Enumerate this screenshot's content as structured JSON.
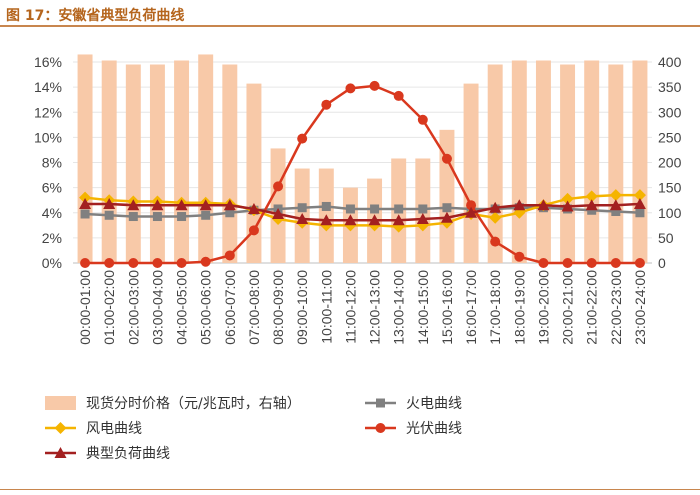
{
  "title": "图 17：安徽省典型负荷曲线",
  "chart_data": {
    "type": "bar+line",
    "categories": [
      "00:00-01:00",
      "01:00-02:00",
      "02:00-03:00",
      "03:00-04:00",
      "04:00-05:00",
      "05:00-06:00",
      "06:00-07:00",
      "07:00-08:00",
      "08:00-09:00",
      "09:00-10:00",
      "10:00-11:00",
      "11:00-12:00",
      "12:00-13:00",
      "13:00-14:00",
      "14:00-15:00",
      "15:00-16:00",
      "16:00-17:00",
      "17:00-18:00",
      "18:00-19:00",
      "19:00-20:00",
      "20:00-21:00",
      "21:00-22:00",
      "22:00-23:00",
      "23:00-24:00"
    ],
    "y_left": {
      "min": 0,
      "max": 16,
      "ticks": [
        0,
        2,
        4,
        6,
        8,
        10,
        12,
        14,
        16
      ],
      "format": "percent"
    },
    "y_right": {
      "min": 0,
      "max": 400,
      "ticks": [
        0,
        50,
        100,
        150,
        200,
        250,
        300,
        350,
        400
      ]
    },
    "series": [
      {
        "name": "现货分时价格（元/兆瓦时，右轴）",
        "type": "bar",
        "axis": "right",
        "color": "#f8c9a8",
        "values": [
          415,
          403,
          395,
          395,
          403,
          415,
          395,
          357,
          228,
          188,
          188,
          150,
          168,
          208,
          208,
          265,
          357,
          395,
          403,
          403,
          395,
          403,
          395,
          403
        ]
      },
      {
        "name": "火电曲线",
        "type": "line",
        "axis": "left",
        "color": "#808080",
        "marker": "square",
        "values": [
          3.9,
          3.8,
          3.7,
          3.7,
          3.7,
          3.8,
          4.0,
          4.2,
          4.3,
          4.4,
          4.5,
          4.3,
          4.3,
          4.3,
          4.3,
          4.4,
          4.3,
          4.3,
          4.4,
          4.4,
          4.3,
          4.2,
          4.1,
          4.0
        ]
      },
      {
        "name": "风电曲线",
        "type": "line",
        "axis": "left",
        "color": "#f5b400",
        "marker": "diamond",
        "values": [
          5.2,
          5.0,
          4.9,
          4.9,
          4.8,
          4.8,
          4.7,
          4.2,
          3.5,
          3.2,
          3.0,
          3.0,
          3.0,
          2.9,
          3.0,
          3.2,
          3.9,
          3.6,
          4.0,
          4.6,
          5.1,
          5.3,
          5.4,
          5.4
        ]
      },
      {
        "name": "光伏曲线",
        "type": "line",
        "axis": "left",
        "color": "#d9381e",
        "marker": "circle",
        "values": [
          0,
          0,
          0,
          0,
          0,
          0.1,
          0.6,
          2.6,
          6.1,
          9.9,
          12.6,
          13.9,
          14.1,
          13.3,
          11.4,
          8.3,
          4.6,
          1.7,
          0.5,
          0,
          0,
          0,
          0,
          0
        ]
      },
      {
        "name": "典型负荷曲线",
        "type": "line",
        "axis": "left",
        "color": "#a32020",
        "marker": "triangle",
        "values": [
          4.7,
          4.7,
          4.6,
          4.6,
          4.6,
          4.6,
          4.6,
          4.3,
          3.9,
          3.5,
          3.4,
          3.4,
          3.4,
          3.4,
          3.5,
          3.6,
          4.0,
          4.4,
          4.6,
          4.6,
          4.5,
          4.6,
          4.6,
          4.7
        ]
      }
    ],
    "legend_position": "bottom"
  }
}
